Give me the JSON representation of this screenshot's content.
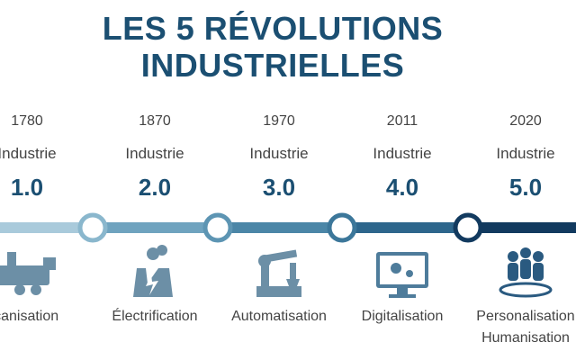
{
  "title_lines": [
    "LES 5 RÉVOLUTIONS",
    "INDUSTRIELLES"
  ],
  "items": [
    {
      "year": "1780",
      "label": "Industrie",
      "version": "1.0",
      "caption": [
        "Mécanisation"
      ]
    },
    {
      "year": "1870",
      "label": "Industrie",
      "version": "2.0",
      "caption": [
        "Électrification"
      ]
    },
    {
      "year": "1970",
      "label": "Industrie",
      "version": "3.0",
      "caption": [
        "Automatisation"
      ]
    },
    {
      "year": "2011",
      "label": "Industrie",
      "version": "4.0",
      "caption": [
        "Digitalisation"
      ]
    },
    {
      "year": "2020",
      "label": "Industrie",
      "version": "5.0",
      "caption": [
        "Personalisation",
        "Humanisation"
      ]
    }
  ]
}
